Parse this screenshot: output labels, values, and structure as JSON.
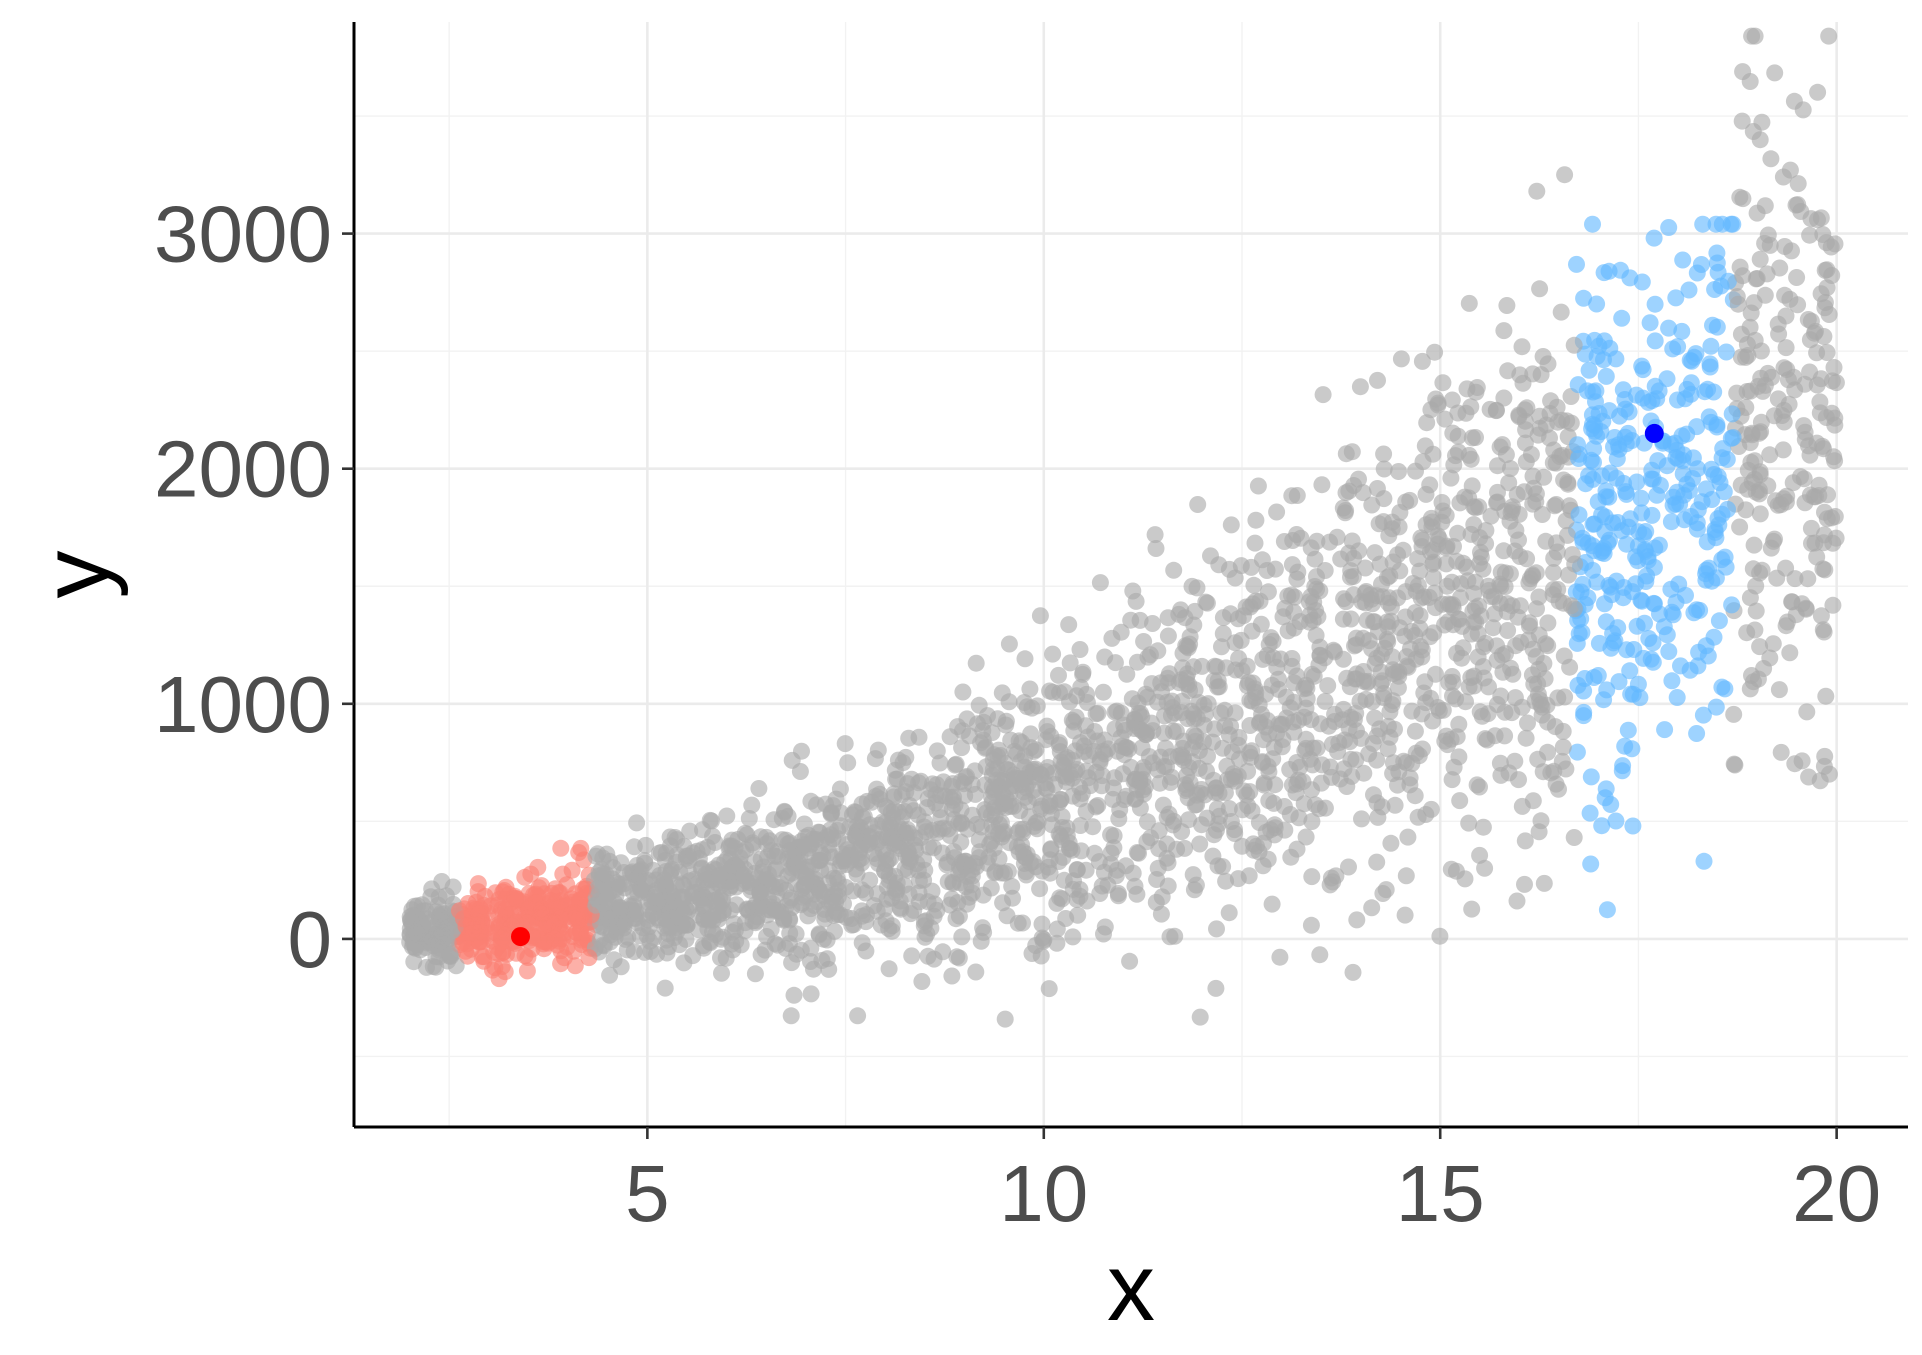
{
  "chart_data": {
    "type": "scatter",
    "title": "",
    "xlabel": "x",
    "ylabel": "y",
    "xlim": [
      1.3,
      20.9
    ],
    "ylim": [
      -800,
      3900
    ],
    "grid": true,
    "xticks": [
      5,
      10,
      15,
      20
    ],
    "xtick_labels": [
      "5",
      "10",
      "15",
      "20"
    ],
    "yticks": [
      0,
      1000,
      2000,
      3000
    ],
    "ytick_labels": [
      "0",
      "1000",
      "2000",
      "3000"
    ],
    "xticks_minor": [
      2.5,
      7.5,
      12.5,
      17.5
    ],
    "yticks_minor": [
      -500,
      500,
      1500,
      2500,
      3500
    ],
    "colors": {
      "background_points": "#A9A9A9",
      "low_band": "#FA8072",
      "high_band": "#63B8FF",
      "low_highlight": "#FF0000",
      "high_highlight": "#0000FF"
    },
    "model": {
      "description_of_trend": "y roughly follows 6*x^2 with spread increasing in x",
      "x_range": [
        2,
        20
      ]
    },
    "bands": [
      {
        "color_key": "low_band",
        "x_range": [
          2.6,
          4.3
        ],
        "y_range": [
          -230,
          470
        ]
      },
      {
        "color_key": "high_band",
        "x_range": [
          16.7,
          18.7
        ],
        "y_range": [
          -90,
          3040
        ]
      }
    ],
    "highlight_points": [
      {
        "color_key": "low_highlight",
        "x": 3.4,
        "y": 10
      },
      {
        "color_key": "high_highlight",
        "x": 17.7,
        "y": 2150
      }
    ],
    "sample_points": [
      {
        "x": 2.2,
        "y": 80
      },
      {
        "x": 3.4,
        "y": 10
      },
      {
        "x": 5,
        "y": 150
      },
      {
        "x": 7.5,
        "y": 340
      },
      {
        "x": 10,
        "y": 600
      },
      {
        "x": 12.5,
        "y": 900
      },
      {
        "x": 15,
        "y": 1350
      },
      {
        "x": 17.7,
        "y": 2150
      },
      {
        "x": 19.8,
        "y": 3650
      }
    ]
  }
}
